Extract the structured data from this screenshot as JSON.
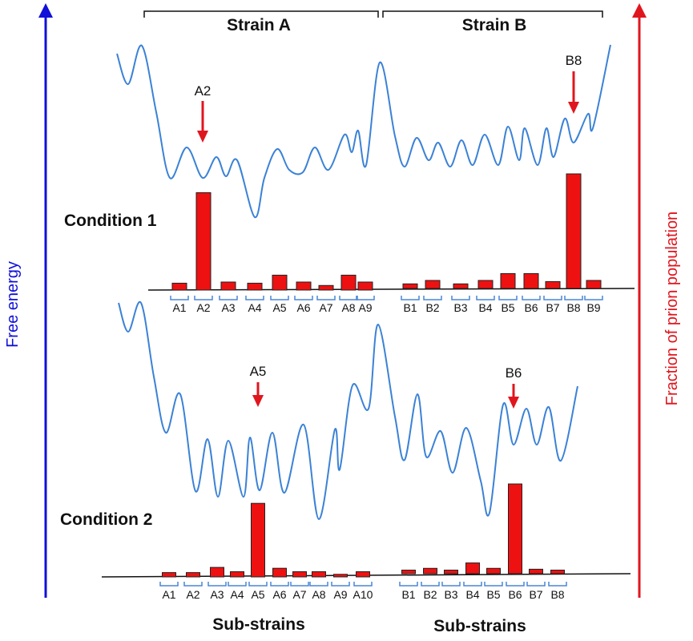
{
  "colors": {
    "energy_axis": "#1010d8",
    "population_axis": "#e0161e",
    "landscape_curve": "#3b82d6",
    "bar_fill": "#ee1111",
    "bracket": "#4a86d6"
  },
  "axes": {
    "left_label": "Free energy",
    "right_label": "Fraction of prion population"
  },
  "strain_headers": [
    "Strain A",
    "Strain B"
  ],
  "panels": [
    {
      "condition": "Condition 1",
      "strain_a": {
        "substrains": [
          "A1",
          "A2",
          "A3",
          "A4",
          "A5",
          "A6",
          "A7",
          "A8",
          "A9"
        ],
        "fractions": [
          0.06,
          0.85,
          0.07,
          0.06,
          0.13,
          0.07,
          0.04,
          0.13,
          0.07
        ],
        "dominant": "A2"
      },
      "strain_b": {
        "substrains": [
          "B1",
          "B2",
          "B3",
          "B4",
          "B5",
          "B6",
          "B7",
          "B8",
          "B9"
        ],
        "fractions": [
          0.04,
          0.07,
          0.04,
          0.07,
          0.13,
          0.13,
          0.06,
          1.0,
          0.07
        ],
        "dominant": "B8"
      }
    },
    {
      "condition": "Condition 2",
      "strain_a": {
        "substrains": [
          "A1",
          "A2",
          "A3",
          "A4",
          "A5",
          "A6",
          "A7",
          "A8",
          "A9",
          "A10"
        ],
        "fractions": [
          0.05,
          0.05,
          0.11,
          0.06,
          0.85,
          0.1,
          0.06,
          0.06,
          0.03,
          0.06
        ],
        "dominant": "A5"
      },
      "strain_b": {
        "substrains": [
          "B1",
          "B2",
          "B3",
          "B4",
          "B5",
          "B6",
          "B7",
          "B8"
        ],
        "fractions": [
          0.04,
          0.06,
          0.04,
          0.12,
          0.06,
          1.0,
          0.05,
          0.04
        ],
        "dominant": "B6"
      }
    }
  ],
  "footer_labels": [
    "Sub-strains",
    "Sub-strains"
  ]
}
